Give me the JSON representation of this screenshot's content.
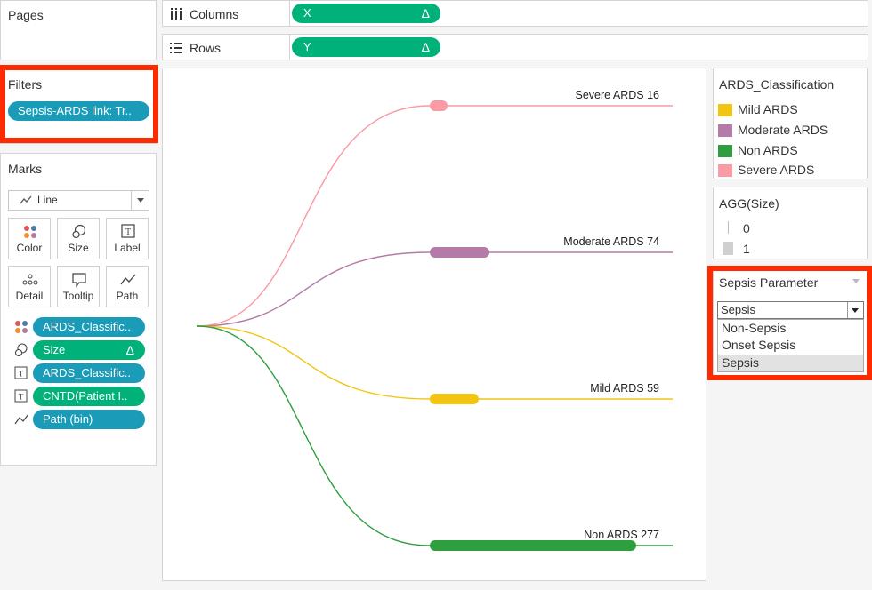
{
  "cards": {
    "pages_title": "Pages",
    "filters_title": "Filters",
    "filter_pill": "Sepsis-ARDS link: Tr..",
    "marks_title": "Marks"
  },
  "marks": {
    "type": "Line",
    "buttons": {
      "color": "Color",
      "size": "Size",
      "label": "Label",
      "detail": "Detail",
      "tooltip": "Tooltip",
      "path": "Path"
    },
    "fields": [
      {
        "label": "ARDS_Classific..",
        "role": "color"
      },
      {
        "label": "Size",
        "role": "size"
      },
      {
        "label": "ARDS_Classific..",
        "role": "label"
      },
      {
        "label": "CNTD(Patient I..",
        "role": "label"
      },
      {
        "label": "Path (bin)",
        "role": "path"
      }
    ]
  },
  "shelves": {
    "columns_label": "Columns",
    "columns_pill": "X",
    "rows_label": "Rows",
    "rows_pill": "Y",
    "delta_glyph": "Δ"
  },
  "legend_class": {
    "title": "ARDS_Classification",
    "items": [
      {
        "label": "Mild ARDS",
        "color": "#f2c511"
      },
      {
        "label": "Moderate ARDS",
        "color": "#b47ba8"
      },
      {
        "label": "Non ARDS",
        "color": "#2e9e3f"
      },
      {
        "label": "Severe ARDS",
        "color": "#f99aa4"
      }
    ]
  },
  "legend_size": {
    "title": "AGG(Size)",
    "items": [
      "0",
      "1"
    ]
  },
  "parameter": {
    "title": "Sepsis Parameter",
    "selected": "Sepsis",
    "options": [
      "Non-Sepsis",
      "Onset Sepsis",
      "Sepsis"
    ]
  },
  "chart_data": {
    "type": "sankey",
    "series": [
      {
        "name": "Severe ARDS",
        "label": "Severe ARDS 16",
        "count": 16,
        "color": "#f99aa4"
      },
      {
        "name": "Moderate ARDS",
        "label": "Moderate ARDS 74",
        "count": 74,
        "color": "#b47ba8"
      },
      {
        "name": "Mild ARDS",
        "label": "Mild ARDS 59",
        "count": 59,
        "color": "#f2c511"
      },
      {
        "name": "Non ARDS",
        "label": "Non ARDS 277",
        "count": 277,
        "color": "#2e9e3f"
      }
    ]
  }
}
